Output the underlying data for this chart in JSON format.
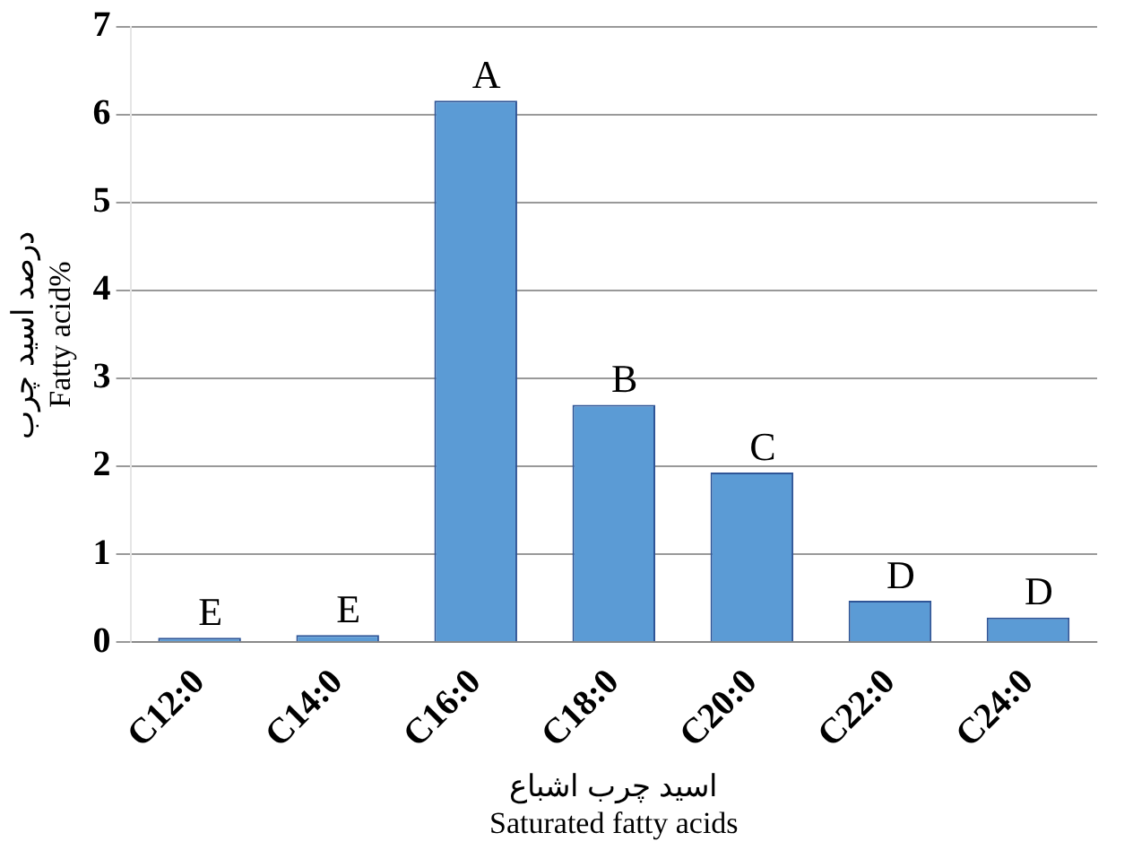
{
  "chart_data": {
    "type": "bar",
    "xlabel": "اسید چرب اشباع\nSaturated fatty acids",
    "ylabel": "درصد اسید چرب\nFatty acid%",
    "categories": [
      "C12:0",
      "C14:0",
      "C16:0",
      "C18:0",
      "C20:0",
      "C22:0",
      "C24:0"
    ],
    "values": [
      0.05,
      0.08,
      6.16,
      2.7,
      1.93,
      0.47,
      0.28
    ],
    "color": "#5b9bd5",
    "ylim": [
      0,
      7
    ],
    "yticks": [
      0,
      1,
      2,
      3,
      4,
      5,
      6,
      7
    ],
    "grid": "y",
    "annotations": [
      {
        "text": "E",
        "x": "C12:0",
        "y": 0.05
      },
      {
        "text": "E",
        "x": "C14:0",
        "y": 0.08
      },
      {
        "text": "A",
        "x": "C16:0",
        "y": 6.16
      },
      {
        "text": "B",
        "x": "C18:0",
        "y": 2.7
      },
      {
        "text": "C",
        "x": "C20:0",
        "y": 1.93
      },
      {
        "text": "D",
        "x": "C22:0",
        "y": 0.47
      },
      {
        "text": "D",
        "x": "C24:0",
        "y": 0.28
      }
    ]
  }
}
